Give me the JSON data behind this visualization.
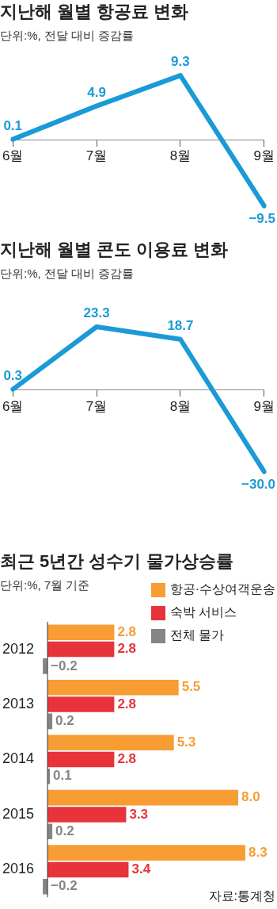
{
  "chart_data": [
    {
      "type": "line",
      "title": "지난해 월별 항공료 변화",
      "subtitle": "단위:%, 전달 대비 증감률",
      "categories": [
        "6월",
        "7월",
        "8월",
        "9월"
      ],
      "tick_labels": "x",
      "grid": false,
      "marker": "none",
      "series": [
        {
          "color": "#1a9ad6",
          "values": [
            0.1,
            4.9,
            9.3,
            -9.5
          ],
          "value_labels": [
            "0.1",
            "4.9",
            "9.3",
            "−9.5"
          ]
        }
      ]
    },
    {
      "type": "line",
      "title": "지난해 월별 콘도 이용료 변화",
      "subtitle": "단위:%, 전달 대비 증감률",
      "categories": [
        "6월",
        "7월",
        "8월",
        "9월"
      ],
      "tick_labels": "x",
      "grid": false,
      "marker": "none",
      "series": [
        {
          "color": "#1a9ad6",
          "values": [
            0.3,
            23.3,
            18.7,
            -30.0
          ],
          "value_labels": [
            "0.3",
            "23.3",
            "18.7",
            "−30.0"
          ]
        }
      ]
    },
    {
      "type": "bar",
      "orientation": "horizontal",
      "title": "최근 5년간 성수기 물가상승률",
      "subtitle": "단위:%, 7월 기준",
      "categories": [
        "2012",
        "2013",
        "2014",
        "2015",
        "2016"
      ],
      "tick_labels": "y",
      "grid": false,
      "legend": "top right",
      "annotations": [
        "자료:통계청"
      ],
      "series": [
        {
          "name": "항공·수상여객운송",
          "color": "#f79d34",
          "values": [
            2.8,
            5.5,
            5.3,
            8.0,
            8.3
          ],
          "value_labels": [
            "2.8",
            "5.5",
            "5.3",
            "8.0",
            "8.3"
          ]
        },
        {
          "name": "숙박 서비스",
          "color": "#e8333a",
          "values": [
            2.8,
            2.8,
            2.8,
            3.3,
            3.4
          ],
          "value_labels": [
            "2.8",
            "2.8",
            "2.8",
            "3.3",
            "3.4"
          ]
        },
        {
          "name": "전체 물가",
          "color": "#858585",
          "values": [
            -0.2,
            0.2,
            0.1,
            0.2,
            -0.2
          ],
          "value_labels": [
            "−0.2",
            "0.2",
            "0.1",
            "0.2",
            "−0.2"
          ]
        }
      ]
    }
  ]
}
